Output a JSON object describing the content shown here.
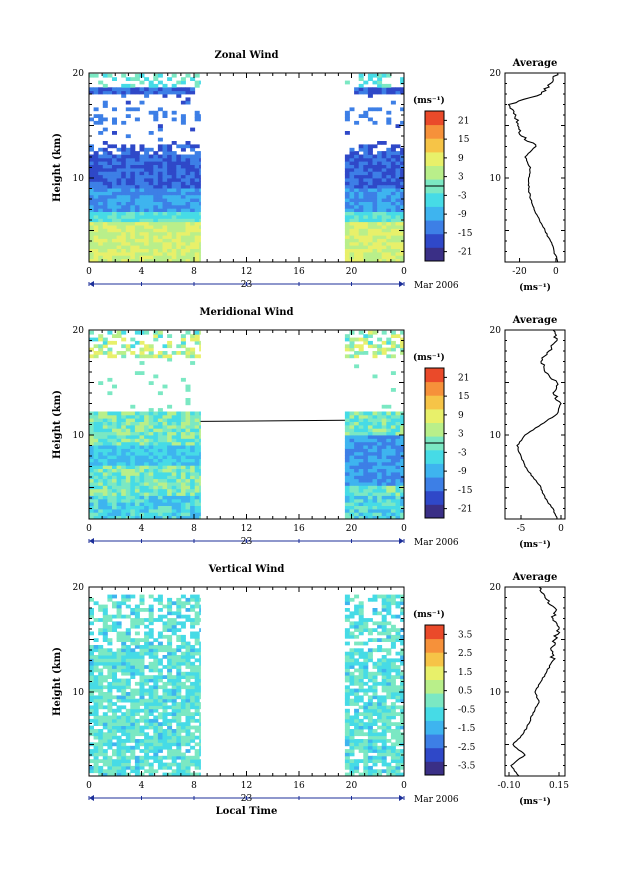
{
  "figure": {
    "month_label": "Mar 2006",
    "date_label": "23",
    "x_axis_label": "Local Time",
    "y_axis_label": "Height (km)",
    "unit_label": "(ms⁻¹)",
    "profile_title": "Average",
    "colors": {
      "scale": [
        "#3a2f86",
        "#2f48c8",
        "#3d7fe6",
        "#3eb4ef",
        "#46dbe6",
        "#7be8c3",
        "#b9ef8a",
        "#e8f06a",
        "#f6c447",
        "#f6913a",
        "#ea4a2a"
      ],
      "frame": "#000000",
      "time_axis_arrow": "#1c2f99"
    }
  },
  "chart_data": [
    {
      "type": "heatmap",
      "title": "Zonal Wind",
      "xlabel": "",
      "ylabel": "Height (km)",
      "x_ticks": [
        "0",
        "4",
        "8",
        "12",
        "16",
        "20",
        "0"
      ],
      "xlim": [
        0,
        24
      ],
      "y_ticks": [
        "10",
        "20"
      ],
      "ylim": [
        2,
        20
      ],
      "data_time_ranges": [
        [
          0,
          8.5
        ],
        [
          19.5,
          24
        ]
      ],
      "colorbar": {
        "unit": "(ms⁻¹)",
        "ticks": [
          "21",
          "15",
          "9",
          "3",
          "-3",
          "-9",
          "-15",
          "-21"
        ],
        "range": [
          -24,
          24
        ]
      },
      "profile": {
        "title": "Average",
        "x_ticks": [
          "-20",
          "0"
        ],
        "xlim": [
          -28,
          5
        ],
        "y_ticks": [
          "10",
          "20"
        ],
        "unit": "(ms⁻¹)",
        "heights": [
          2,
          3,
          4,
          5,
          6,
          7,
          8,
          9,
          10,
          11,
          12,
          13,
          14,
          15,
          16,
          17,
          18,
          19,
          20
        ],
        "values": [
          1,
          -1,
          -3,
          -6,
          -9,
          -12,
          -14,
          -15,
          -15,
          -14,
          -17,
          -11,
          -19,
          -21,
          -22,
          -26,
          -8,
          -3,
          1
        ]
      }
    },
    {
      "type": "heatmap",
      "title": "Meridional Wind",
      "xlabel": "",
      "ylabel": "Height (km)",
      "x_ticks": [
        "0",
        "4",
        "8",
        "12",
        "16",
        "20",
        "0"
      ],
      "xlim": [
        0,
        24
      ],
      "y_ticks": [
        "10",
        "20"
      ],
      "ylim": [
        2,
        20
      ],
      "data_time_ranges": [
        [
          0,
          8.5
        ],
        [
          19.5,
          24
        ]
      ],
      "colorbar": {
        "unit": "(ms⁻¹)",
        "ticks": [
          "21",
          "15",
          "9",
          "3",
          "-3",
          "-9",
          "-15",
          "-21"
        ],
        "range": [
          -24,
          24
        ]
      },
      "profile": {
        "title": "Average",
        "x_ticks": [
          "-5",
          "0"
        ],
        "xlim": [
          -7,
          0.5
        ],
        "y_ticks": [
          "10",
          "20"
        ],
        "unit": "(ms⁻¹)",
        "heights": [
          2,
          3,
          4,
          5,
          6,
          7,
          8,
          9,
          10,
          11,
          12,
          13,
          14,
          15,
          16,
          17,
          18,
          19,
          20
        ],
        "values": [
          -0.5,
          -1,
          -2,
          -2.5,
          -3.5,
          -4.5,
          -5,
          -5.5,
          -4.5,
          -2.5,
          -0.5,
          0,
          -1,
          -0.5,
          -2,
          -2.5,
          -1.5,
          -0.5,
          -1
        ]
      }
    },
    {
      "type": "heatmap",
      "title": "Vertical Wind",
      "xlabel": "Local Time",
      "ylabel": "Height (km)",
      "x_ticks": [
        "0",
        "4",
        "8",
        "12",
        "16",
        "20",
        "0"
      ],
      "xlim": [
        0,
        24
      ],
      "y_ticks": [
        "10",
        "20"
      ],
      "ylim": [
        2,
        20
      ],
      "data_time_ranges": [
        [
          0,
          8.5
        ],
        [
          19.5,
          24
        ]
      ],
      "colorbar": {
        "unit": "(ms⁻¹)",
        "ticks": [
          "3.5",
          "2.5",
          "1.5",
          "0.5",
          "-0.5",
          "-1.5",
          "-2.5",
          "-3.5"
        ],
        "range": [
          -4,
          4
        ]
      },
      "profile": {
        "title": "Average",
        "x_ticks": [
          "-0.10",
          "0.15"
        ],
        "xlim": [
          -0.12,
          0.18
        ],
        "y_ticks": [
          "10",
          "20"
        ],
        "unit": "(ms⁻¹)",
        "heights": [
          2,
          3,
          4,
          5,
          6,
          7,
          8,
          9,
          10,
          11,
          12,
          13,
          14,
          15,
          16,
          17,
          18,
          19,
          20
        ],
        "values": [
          -0.05,
          -0.09,
          -0.02,
          -0.08,
          -0.03,
          0.0,
          0.02,
          0.05,
          0.03,
          0.06,
          0.09,
          0.12,
          0.11,
          0.13,
          0.15,
          0.12,
          0.13,
          0.08,
          0.05
        ]
      }
    }
  ]
}
